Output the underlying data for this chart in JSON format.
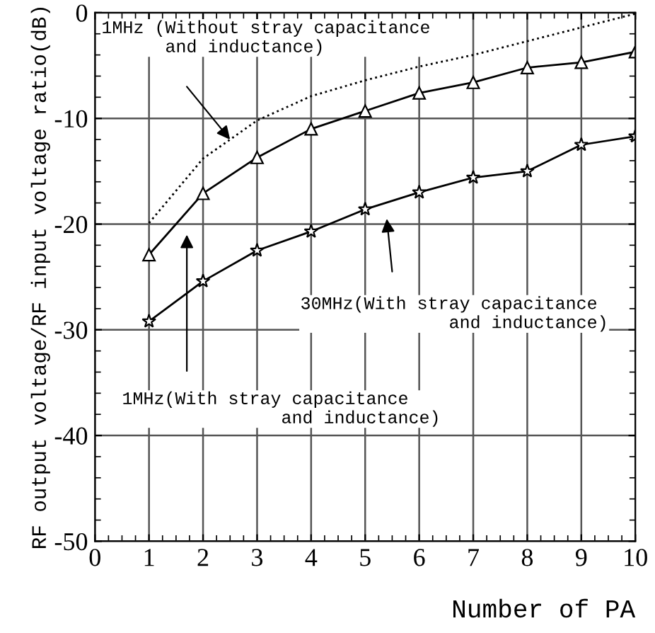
{
  "chart_data": {
    "type": "line",
    "xlabel": "Number of PA",
    "ylabel": "RF output voltage/RF input voltage ratio(dB)",
    "x": [
      1,
      2,
      3,
      4,
      5,
      6,
      7,
      8,
      9,
      10
    ],
    "series": [
      {
        "color": "#000000",
        "marker": "none",
        "line_style": "dotted",
        "values": [
          -19.9,
          -13.8,
          -10.2,
          -7.9,
          -6.4,
          -5.1,
          -4.0,
          -2.7,
          -1.4,
          -0.1
        ]
      },
      {
        "color": "#000000",
        "marker": "triangle",
        "line_style": "solid",
        "values": [
          -22.9,
          -17.1,
          -13.7,
          -11.0,
          -9.3,
          -7.6,
          -6.6,
          -5.2,
          -4.7,
          -3.7
        ]
      },
      {
        "color": "#000000",
        "marker": "star",
        "line_style": "solid",
        "values": [
          -29.2,
          -25.4,
          -22.5,
          -20.7,
          -18.6,
          -17.0,
          -15.6,
          -15.0,
          -12.5,
          -11.7
        ]
      }
    ],
    "annotations": [
      "1MHz (Without stray capacitance\n      and inductance)",
      "30MHz(With stray capacitance\n              and inductance)",
      "1MHz(With stray capacitance\n               and inductance)"
    ],
    "xlim": [
      0,
      10
    ],
    "ylim": [
      -50,
      0
    ],
    "xticks": [
      0,
      1,
      2,
      3,
      4,
      5,
      6,
      7,
      8,
      9,
      10
    ],
    "yticks": [
      -50,
      -40,
      -30,
      -20,
      -10,
      0
    ],
    "grid": true,
    "legend": false
  }
}
